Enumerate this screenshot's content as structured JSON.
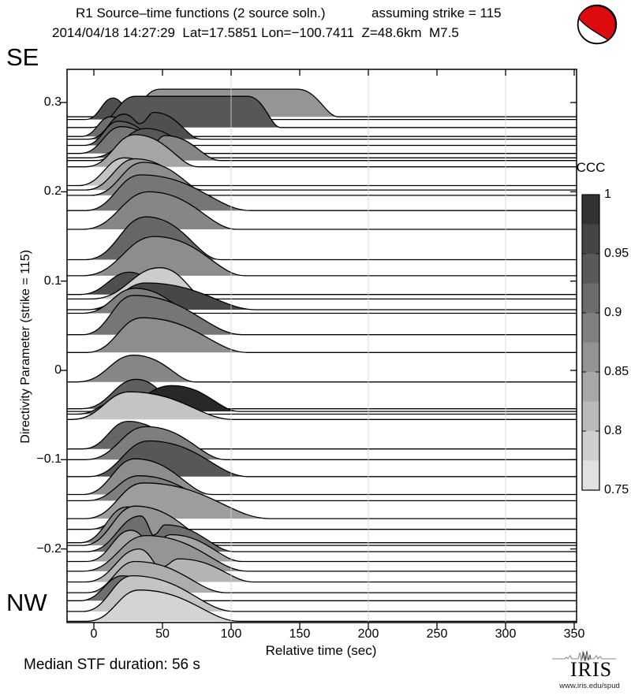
{
  "header": {
    "title_left": "R1 Source–time functions (2 source soln.)",
    "title_right": "assuming strike = 115",
    "subtitle": "2014/04/18 14:27:29  Lat=17.5851 Lon=−100.7411  Z=48.6km  M7.5"
  },
  "corner_labels": {
    "top_left": "SE",
    "bottom_left": "NW"
  },
  "footer": {
    "median_text": "Median STF duration: 56 s",
    "logo_text": "IRIS",
    "logo_url": "www.iris.edu/spud"
  },
  "beachball": {
    "name": "focal-mechanism",
    "fill": "#dd0b10",
    "outline": "#000000"
  },
  "chart_data": {
    "type": "area",
    "title": "R1 Source–time functions (2 source soln.)",
    "xlabel": "Relative time (sec)",
    "ylabel": "Directivity Parameter (strike = 115)",
    "xlim": [
      -19.5,
      351.7
    ],
    "ylim": [
      -0.283,
      0.337
    ],
    "xticks": [
      0,
      50,
      100,
      150,
      200,
      250,
      300,
      350
    ],
    "xtick_labels": [
      "0",
      "50",
      "100",
      "150",
      "200",
      "250",
      "300",
      "350"
    ],
    "yticks": [
      0.3,
      0.2,
      0.1,
      0,
      -0.1,
      -0.2
    ],
    "ytick_labels": [
      "0.3",
      "0.2",
      "0.1",
      "0",
      "−0.1",
      "−0.2"
    ],
    "gridlines_x": [
      100,
      200,
      300
    ],
    "grid_color": "#d4d4d4",
    "colorbar": {
      "label": "CCC",
      "min": 0.75,
      "max": 1,
      "segments": 10,
      "tick_values": [
        1,
        0.95,
        0.9,
        0.85,
        0.8,
        0.75
      ],
      "tick_labels": [
        "1",
        "0.95",
        "0.9",
        "0.85",
        "0.8",
        "0.75"
      ],
      "dark": "#282828",
      "light": "#ebebeb"
    },
    "traces": [
      {
        "d": 0.284,
        "ccc": 0.86,
        "t0": 18,
        "peaks": [
          [
            48,
            0.031
          ]
        ],
        "flat_to": 148,
        "end": 178
      },
      {
        "d": 0.281,
        "ccc": 0.95,
        "t0": -6,
        "peaks": [
          [
            14,
            0.024
          ],
          [
            34,
            0.02
          ]
        ],
        "end": 58
      },
      {
        "d": 0.272,
        "ccc": 0.94,
        "t0": -2,
        "peaks": [
          [
            30,
            0.035
          ]
        ],
        "flat_to": 112,
        "end": 136
      },
      {
        "d": 0.262,
        "ccc": 0.91,
        "t0": -9,
        "peaks": [
          [
            12,
            0.022
          ]
        ],
        "end": 38
      },
      {
        "d": 0.259,
        "ccc": 0.95,
        "t0": -4,
        "peaks": [
          [
            22,
            0.028
          ],
          [
            44,
            0.03
          ]
        ],
        "end": 78
      },
      {
        "d": 0.252,
        "ccc": 0.93,
        "t0": -7,
        "peaks": [
          [
            18,
            0.027
          ]
        ],
        "end": 52
      },
      {
        "d": 0.243,
        "ccc": 0.9,
        "t0": -10,
        "peaks": [
          [
            20,
            0.03
          ]
        ],
        "end": 60
      },
      {
        "d": 0.238,
        "ccc": 0.94,
        "t0": -2,
        "peaks": [
          [
            38,
            0.033
          ]
        ],
        "end": 82
      },
      {
        "d": 0.235,
        "ccc": 0.88,
        "t0": 2,
        "peaks": [
          [
            28,
            0.026
          ],
          [
            52,
            0.028
          ]
        ],
        "end": 92
      },
      {
        "d": 0.228,
        "ccc": 0.84,
        "t0": -6,
        "peaks": [
          [
            30,
            0.036
          ]
        ],
        "end": 76
      },
      {
        "d": 0.207,
        "ccc": 0.8,
        "t0": -11,
        "peaks": [
          [
            22,
            0.031
          ]
        ],
        "end": 66
      },
      {
        "d": 0.202,
        "ccc": 0.85,
        "t0": -6,
        "peaks": [
          [
            30,
            0.035
          ]
        ],
        "end": 80
      },
      {
        "d": 0.196,
        "ccc": 0.87,
        "t0": -2,
        "peaks": [
          [
            36,
            0.037
          ]
        ],
        "end": 86
      },
      {
        "d": 0.179,
        "ccc": 0.9,
        "t0": -6,
        "peaks": [
          [
            34,
            0.04
          ]
        ],
        "end": 114
      },
      {
        "d": 0.158,
        "ccc": 0.88,
        "t0": -8,
        "peaks": [
          [
            40,
            0.042
          ]
        ],
        "end": 104
      },
      {
        "d": 0.124,
        "ccc": 0.92,
        "t0": -6,
        "peaks": [
          [
            38,
            0.048
          ]
        ],
        "end": 92
      },
      {
        "d": 0.106,
        "ccc": 0.87,
        "t0": -8,
        "peaks": [
          [
            44,
            0.044
          ]
        ],
        "end": 110
      },
      {
        "d": 0.085,
        "ccc": 0.95,
        "t0": -10,
        "peaks": [
          [
            26,
            0.025
          ]
        ],
        "end": 54
      },
      {
        "d": 0.08,
        "ccc": 0.79,
        "t0": -2,
        "peaks": [
          [
            48,
            0.035
          ]
        ],
        "end": 82
      },
      {
        "d": 0.068,
        "ccc": 0.96,
        "t0": -5,
        "peaks": [
          [
            38,
            0.03
          ]
        ],
        "end": 118
      },
      {
        "d": 0.064,
        "ccc": 0.89,
        "t0": -8,
        "peaks": [
          [
            30,
            0.028
          ]
        ],
        "end": 74
      },
      {
        "d": 0.04,
        "ccc": 0.9,
        "t0": -8,
        "peaks": [
          [
            29,
            0.044
          ]
        ],
        "end": 108
      },
      {
        "d": 0.02,
        "ccc": 0.87,
        "t0": -5,
        "peaks": [
          [
            35,
            0.039
          ]
        ],
        "end": 112
      },
      {
        "d": -0.013,
        "ccc": 0.88,
        "t0": -12,
        "peaks": [
          [
            29,
            0.03
          ]
        ],
        "end": 74
      },
      {
        "d": -0.043,
        "ccc": 0.93,
        "t0": -9,
        "peaks": [
          [
            31,
            0.033
          ]
        ],
        "end": 64
      },
      {
        "d": -0.046,
        "ccc": 1.0,
        "t0": 8,
        "peaks": [
          [
            57,
            0.029
          ]
        ],
        "end": 106
      },
      {
        "d": -0.049,
        "ccc": 0.92,
        "t0": -12,
        "peaks": [
          [
            16,
            0.014
          ]
        ],
        "end": 38
      },
      {
        "d": -0.055,
        "ccc": 0.8,
        "t0": -16,
        "peaks": [
          [
            26,
            0.031
          ]
        ],
        "end": 101
      },
      {
        "d": -0.088,
        "ccc": 0.92,
        "t0": -8,
        "peaks": [
          [
            25,
            0.031
          ]
        ],
        "end": 70
      },
      {
        "d": -0.1,
        "ccc": 0.89,
        "t0": -6,
        "peaks": [
          [
            38,
            0.037
          ]
        ],
        "end": 96
      },
      {
        "d": -0.119,
        "ccc": 0.94,
        "t0": -4,
        "peaks": [
          [
            40,
            0.04
          ]
        ],
        "end": 112
      },
      {
        "d": -0.139,
        "ccc": 0.87,
        "t0": -8,
        "peaks": [
          [
            30,
            0.04
          ]
        ],
        "end": 86
      },
      {
        "d": -0.146,
        "ccc": 0.89,
        "t0": -5,
        "peaks": [
          [
            33,
            0.028
          ]
        ],
        "end": 90
      },
      {
        "d": -0.166,
        "ccc": 0.85,
        "t0": -6,
        "peaks": [
          [
            36,
            0.04
          ]
        ],
        "end": 128
      },
      {
        "d": -0.178,
        "ccc": 0.91,
        "t0": -3,
        "peaks": [
          [
            29,
            0.024
          ]
        ],
        "end": 68
      },
      {
        "d": -0.193,
        "ccc": 0.88,
        "t0": -10,
        "peaks": [
          [
            24,
            0.04
          ]
        ],
        "end": 72
      },
      {
        "d": -0.196,
        "ccc": 0.86,
        "t0": -8,
        "peaks": [
          [
            30,
            0.044
          ]
        ],
        "end": 92
      },
      {
        "d": -0.203,
        "ccc": 0.91,
        "t0": -5,
        "peaks": [
          [
            34,
            0.04
          ],
          [
            52,
            0.03
          ]
        ],
        "end": 102
      },
      {
        "d": -0.214,
        "ccc": 0.84,
        "t0": -5,
        "peaks": [
          [
            27,
            0.035
          ],
          [
            56,
            0.03
          ]
        ],
        "end": 108
      },
      {
        "d": -0.225,
        "ccc": 0.86,
        "t0": -8,
        "peaks": [
          [
            38,
            0.04
          ]
        ],
        "end": 112
      },
      {
        "d": -0.237,
        "ccc": 0.82,
        "t0": -6,
        "peaks": [
          [
            33,
            0.037
          ],
          [
            62,
            0.026
          ]
        ],
        "end": 116
      },
      {
        "d": -0.249,
        "ccc": 0.83,
        "t0": -5,
        "peaks": [
          [
            30,
            0.035
          ]
        ],
        "end": 96
      },
      {
        "d": -0.258,
        "ccc": 0.91,
        "t0": -10,
        "peaks": [
          [
            21,
            0.028
          ]
        ],
        "end": 58
      },
      {
        "d": -0.27,
        "ccc": 0.8,
        "t0": -8,
        "peaks": [
          [
            28,
            0.04
          ]
        ],
        "end": 102
      },
      {
        "d": -0.281,
        "ccc": 0.78,
        "t0": -5,
        "peaks": [
          [
            33,
            0.035
          ]
        ],
        "end": 106
      }
    ]
  }
}
